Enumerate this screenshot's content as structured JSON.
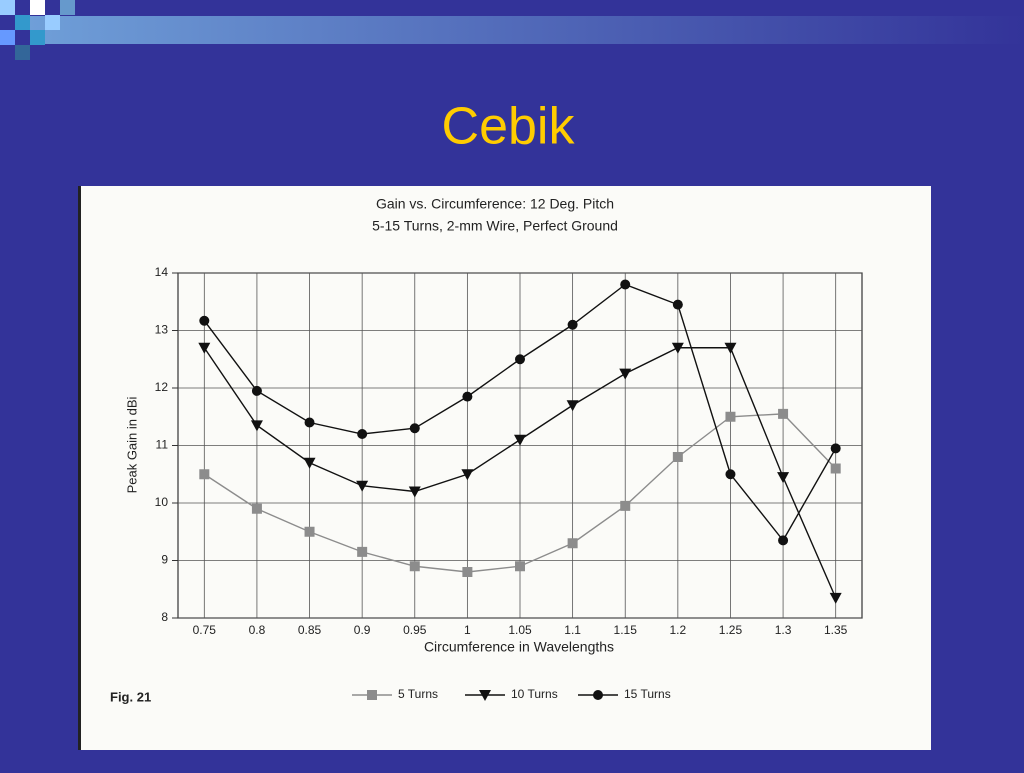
{
  "slide": {
    "title": "Cebik"
  },
  "chart_data": {
    "type": "line",
    "title": "Gain vs. Circumference:  12 Deg. Pitch",
    "subtitle": "5-15 Turns, 2-mm Wire, Perfect Ground",
    "x_label": "Circumference in Wavelengths",
    "y_label": "Peak Gain in dBi",
    "annotation": "Fig. 21",
    "x": [
      0.75,
      0.8,
      0.85,
      0.9,
      0.95,
      1,
      1.05,
      1.1,
      1.15,
      1.2,
      1.25,
      1.3,
      1.35
    ],
    "xlim": [
      0.725,
      1.375
    ],
    "xticks": [
      0.75,
      0.8,
      0.85,
      0.9,
      0.95,
      1,
      1.05,
      1.1,
      1.15,
      1.2,
      1.25,
      1.3,
      1.35
    ],
    "ylim": [
      8,
      14
    ],
    "yticks": [
      8,
      9,
      10,
      11,
      12,
      13,
      14
    ],
    "grid": true,
    "legend": "bottom",
    "series": [
      {
        "name": "5 Turns",
        "color": "#8c8c8c",
        "marker": "square",
        "values": [
          10.5,
          9.9,
          9.5,
          9.15,
          8.9,
          8.8,
          8.9,
          9.3,
          9.95,
          10.8,
          11.5,
          11.55,
          10.6
        ]
      },
      {
        "name": "10 Turns",
        "color": "#111111",
        "marker": "triangle-down",
        "values": [
          12.7,
          11.35,
          10.7,
          10.3,
          10.2,
          10.5,
          11.1,
          11.7,
          12.25,
          12.7,
          12.7,
          10.45,
          8.35
        ]
      },
      {
        "name": "15 Turns",
        "color": "#111111",
        "marker": "circle",
        "values": [
          13.17,
          11.95,
          11.4,
          11.2,
          11.3,
          11.85,
          12.5,
          13.1,
          13.8,
          13.45,
          10.5,
          9.35,
          10.95
        ]
      }
    ]
  }
}
